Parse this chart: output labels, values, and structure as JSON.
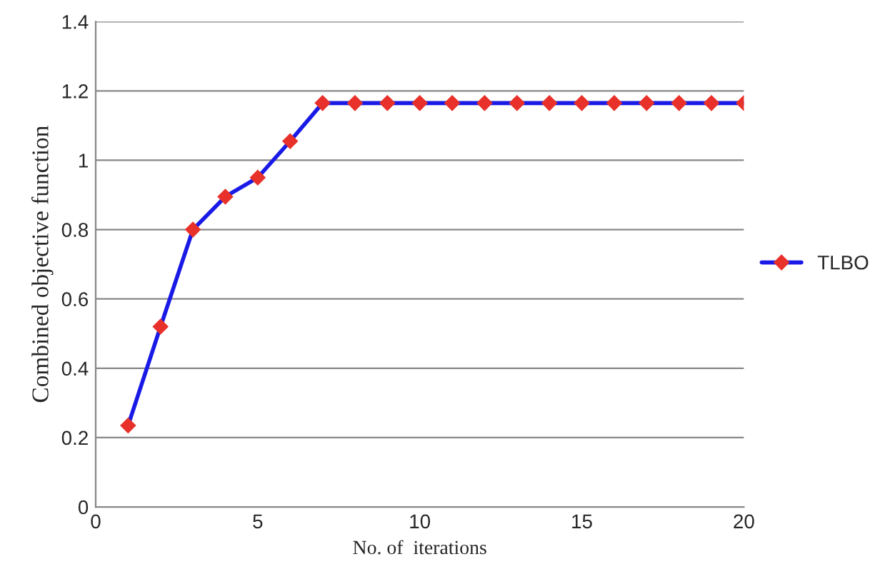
{
  "chart_data": {
    "type": "line",
    "xlabel": "No. of  iterations",
    "ylabel": "Combined objective function",
    "x": [
      1,
      2,
      3,
      4,
      5,
      6,
      7,
      8,
      9,
      10,
      11,
      12,
      13,
      14,
      15,
      16,
      17,
      18,
      19,
      20
    ],
    "series": [
      {
        "name": "TLBO",
        "color": "#1a1ae6",
        "values": [
          0.235,
          0.52,
          0.8,
          0.895,
          0.95,
          1.055,
          1.165,
          1.165,
          1.165,
          1.165,
          1.165,
          1.165,
          1.165,
          1.165,
          1.165,
          1.165,
          1.165,
          1.165,
          1.165,
          1.165
        ]
      }
    ],
    "xlim": [
      0,
      20
    ],
    "xticks": [
      0,
      5,
      10,
      15,
      20
    ],
    "ylim": [
      0,
      1.4
    ],
    "yticks": [
      0,
      0.2,
      0.4,
      0.6,
      0.8,
      {
        "value": 1,
        "label": "1"
      },
      1.2,
      1.4
    ],
    "grid": "y",
    "legend": "right",
    "marker": "diamond",
    "line_style": "solid"
  }
}
